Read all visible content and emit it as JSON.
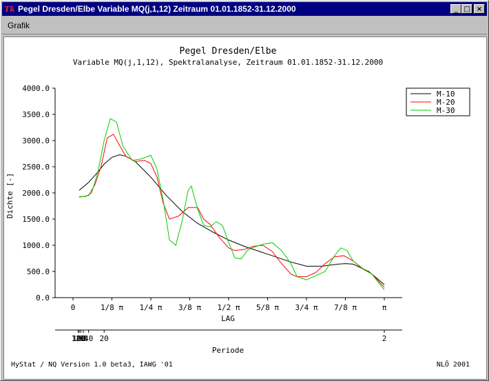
{
  "window": {
    "title": "Pegel Dresden/Elbe Variable MQ(j,1,12) Zeitraum 01.01.1852-31.12.2000",
    "icon_label": "Tk",
    "minimize_glyph": "_",
    "maximize_glyph": "□",
    "close_glyph": "×"
  },
  "menu": {
    "items": [
      "Grafik"
    ]
  },
  "footer": {
    "left": "HyStat / NQ Version 1.0 beta3, IAWG '01",
    "right": "NLÖ 2001"
  },
  "chart_data": {
    "type": "line",
    "title": "Pegel Dresden/Elbe",
    "subtitle": "Variable MQ(j,1,12), Spektralanalyse, Zeitraum 01.01.1852-31.12.2000",
    "ylabel": "Dichte [-]",
    "xlabel": "LAG",
    "x2label": "Periode",
    "ylim": [
      0,
      4000
    ],
    "yticks": [
      "0.0",
      "500.0",
      "1000.0",
      "1500.0",
      "2000.0",
      "2500.0",
      "3000.0",
      "3500.0",
      "4000.0"
    ],
    "xlim": [
      0,
      1
    ],
    "xticks": [
      {
        "v": 0,
        "label": "0"
      },
      {
        "v": 0.125,
        "label": "1/8 π"
      },
      {
        "v": 0.25,
        "label": "1/4 π"
      },
      {
        "v": 0.375,
        "label": "3/8 π"
      },
      {
        "v": 0.5,
        "label": "1/2 π"
      },
      {
        "v": 0.625,
        "label": "5/8 π"
      },
      {
        "v": 0.75,
        "label": "3/4 π"
      },
      {
        "v": 0.875,
        "label": "7/8 π"
      },
      {
        "v": 1,
        "label": "π"
      }
    ],
    "periode_ticks": [
      {
        "v": 120,
        "label": "120"
      },
      {
        "v": 100,
        "label": "100"
      },
      {
        "v": 80,
        "label": "80"
      },
      {
        "v": 60,
        "label": "60"
      },
      {
        "v": 40,
        "label": "40"
      },
      {
        "v": 20,
        "label": "20"
      },
      {
        "v": 2,
        "label": "2"
      }
    ],
    "grid": false,
    "legend_position": "top-right outside",
    "series": [
      {
        "name": "M-10",
        "color": "#000000",
        "x": [
          0.02,
          0.05,
          0.08,
          0.1,
          0.125,
          0.15,
          0.17,
          0.2,
          0.25,
          0.3,
          0.35,
          0.4,
          0.45,
          0.5,
          0.55,
          0.6,
          0.65,
          0.7,
          0.75,
          0.8,
          0.85,
          0.875,
          0.9,
          0.95,
          1.0
        ],
        "y": [
          2050,
          2200,
          2400,
          2550,
          2680,
          2730,
          2700,
          2600,
          2300,
          1950,
          1650,
          1420,
          1250,
          1100,
          980,
          880,
          780,
          680,
          600,
          600,
          640,
          650,
          640,
          500,
          250
        ]
      },
      {
        "name": "M-20",
        "color": "#ff0000",
        "x": [
          0.02,
          0.05,
          0.07,
          0.09,
          0.11,
          0.13,
          0.15,
          0.17,
          0.2,
          0.23,
          0.25,
          0.27,
          0.29,
          0.31,
          0.34,
          0.37,
          0.4,
          0.42,
          0.44,
          0.47,
          0.5,
          0.52,
          0.55,
          0.58,
          0.61,
          0.64,
          0.67,
          0.7,
          0.72,
          0.75,
          0.78,
          0.81,
          0.84,
          0.87,
          0.9,
          0.93,
          0.96,
          1.0
        ],
        "y": [
          1920,
          1950,
          2150,
          2500,
          3050,
          3120,
          2900,
          2700,
          2600,
          2620,
          2560,
          2300,
          1800,
          1500,
          1560,
          1720,
          1720,
          1500,
          1400,
          1150,
          950,
          900,
          920,
          980,
          1000,
          880,
          650,
          450,
          400,
          400,
          480,
          650,
          780,
          800,
          700,
          550,
          450,
          200
        ]
      },
      {
        "name": "M-30",
        "color": "#00cc00",
        "x": [
          0.02,
          0.04,
          0.06,
          0.08,
          0.1,
          0.12,
          0.14,
          0.16,
          0.19,
          0.22,
          0.25,
          0.27,
          0.29,
          0.31,
          0.33,
          0.35,
          0.37,
          0.38,
          0.4,
          0.42,
          0.44,
          0.46,
          0.48,
          0.5,
          0.52,
          0.54,
          0.56,
          0.58,
          0.61,
          0.64,
          0.67,
          0.7,
          0.72,
          0.75,
          0.78,
          0.81,
          0.84,
          0.86,
          0.88,
          0.9,
          0.93,
          0.96,
          1.0
        ],
        "y": [
          1930,
          1930,
          2000,
          2400,
          3000,
          3420,
          3350,
          2900,
          2620,
          2650,
          2720,
          2450,
          1850,
          1100,
          1000,
          1450,
          2050,
          2130,
          1700,
          1380,
          1350,
          1450,
          1380,
          1050,
          760,
          740,
          900,
          960,
          1020,
          1050,
          900,
          650,
          400,
          340,
          420,
          500,
          800,
          950,
          900,
          700,
          560,
          450,
          150
        ]
      }
    ]
  }
}
